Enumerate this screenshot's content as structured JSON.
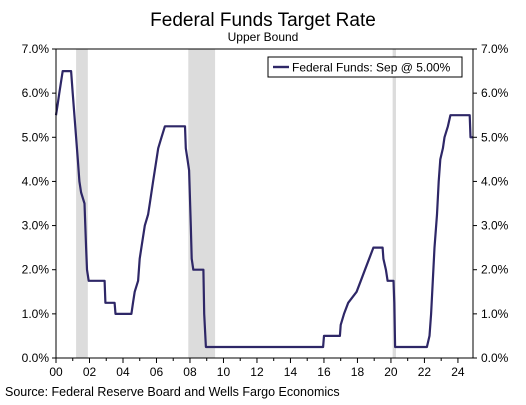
{
  "chart_data": {
    "type": "line",
    "title": "Federal Funds Target Rate",
    "subtitle": "Upper Bound",
    "source": "Source: Federal Reserve Board and Wells Fargo Economics",
    "xlabel": "",
    "ylabel": "",
    "x_tick_labels": [
      "00",
      "02",
      "04",
      "06",
      "08",
      "10",
      "12",
      "14",
      "16",
      "18",
      "20",
      "22",
      "24"
    ],
    "x_tick_years": [
      2000,
      2002,
      2004,
      2006,
      2008,
      2010,
      2012,
      2014,
      2016,
      2018,
      2020,
      2022,
      2024
    ],
    "y_tick_labels": [
      "0.0%",
      "1.0%",
      "2.0%",
      "3.0%",
      "4.0%",
      "5.0%",
      "6.0%",
      "7.0%"
    ],
    "y_tick_values": [
      0,
      1,
      2,
      3,
      4,
      5,
      6,
      7
    ],
    "xlim": [
      2000.0,
      2024.9
    ],
    "ylim": [
      0,
      7
    ],
    "grid": false,
    "legend_position": "top-right",
    "recessions": [
      {
        "start": 2001.2,
        "end": 2001.9
      },
      {
        "start": 2007.9,
        "end": 2009.5
      },
      {
        "start": 2020.1,
        "end": 2020.3
      }
    ],
    "recession_color": "#dcdcdc",
    "series": [
      {
        "name": "Federal Funds: Sep @ 5.00%",
        "color": "#2e2767",
        "points": [
          [
            2000.0,
            5.5
          ],
          [
            2000.1,
            5.75
          ],
          [
            2000.2,
            6.0
          ],
          [
            2000.4,
            6.5
          ],
          [
            2000.9,
            6.5
          ],
          [
            2001.0,
            6.0
          ],
          [
            2001.1,
            5.5
          ],
          [
            2001.2,
            5.0
          ],
          [
            2001.3,
            4.5
          ],
          [
            2001.4,
            4.0
          ],
          [
            2001.5,
            3.75
          ],
          [
            2001.7,
            3.5
          ],
          [
            2001.75,
            3.0
          ],
          [
            2001.8,
            2.5
          ],
          [
            2001.85,
            2.0
          ],
          [
            2001.95,
            1.75
          ],
          [
            2002.9,
            1.75
          ],
          [
            2002.95,
            1.25
          ],
          [
            2003.5,
            1.25
          ],
          [
            2003.55,
            1.0
          ],
          [
            2004.5,
            1.0
          ],
          [
            2004.6,
            1.25
          ],
          [
            2004.7,
            1.5
          ],
          [
            2004.9,
            1.75
          ],
          [
            2005.0,
            2.25
          ],
          [
            2005.1,
            2.5
          ],
          [
            2005.3,
            3.0
          ],
          [
            2005.5,
            3.25
          ],
          [
            2005.6,
            3.5
          ],
          [
            2005.8,
            4.0
          ],
          [
            2006.0,
            4.5
          ],
          [
            2006.1,
            4.75
          ],
          [
            2006.3,
            5.0
          ],
          [
            2006.5,
            5.25
          ],
          [
            2007.7,
            5.25
          ],
          [
            2007.75,
            4.75
          ],
          [
            2007.85,
            4.5
          ],
          [
            2007.95,
            4.25
          ],
          [
            2008.05,
            3.0
          ],
          [
            2008.1,
            2.25
          ],
          [
            2008.2,
            2.0
          ],
          [
            2008.8,
            2.0
          ],
          [
            2008.85,
            1.0
          ],
          [
            2008.95,
            0.25
          ],
          [
            2015.95,
            0.25
          ],
          [
            2016.0,
            0.5
          ],
          [
            2016.95,
            0.5
          ],
          [
            2017.0,
            0.75
          ],
          [
            2017.2,
            1.0
          ],
          [
            2017.45,
            1.25
          ],
          [
            2017.95,
            1.5
          ],
          [
            2018.2,
            1.75
          ],
          [
            2018.45,
            2.0
          ],
          [
            2018.7,
            2.25
          ],
          [
            2018.95,
            2.5
          ],
          [
            2019.5,
            2.5
          ],
          [
            2019.55,
            2.25
          ],
          [
            2019.7,
            2.0
          ],
          [
            2019.8,
            1.75
          ],
          [
            2020.15,
            1.75
          ],
          [
            2020.2,
            1.25
          ],
          [
            2020.25,
            0.25
          ],
          [
            2022.15,
            0.25
          ],
          [
            2022.3,
            0.5
          ],
          [
            2022.4,
            1.0
          ],
          [
            2022.5,
            1.75
          ],
          [
            2022.6,
            2.5
          ],
          [
            2022.75,
            3.25
          ],
          [
            2022.85,
            4.0
          ],
          [
            2022.95,
            4.5
          ],
          [
            2023.1,
            4.75
          ],
          [
            2023.2,
            5.0
          ],
          [
            2023.4,
            5.25
          ],
          [
            2023.55,
            5.5
          ],
          [
            2024.7,
            5.5
          ],
          [
            2024.75,
            5.0
          ],
          [
            2024.9,
            5.0
          ]
        ]
      }
    ]
  }
}
